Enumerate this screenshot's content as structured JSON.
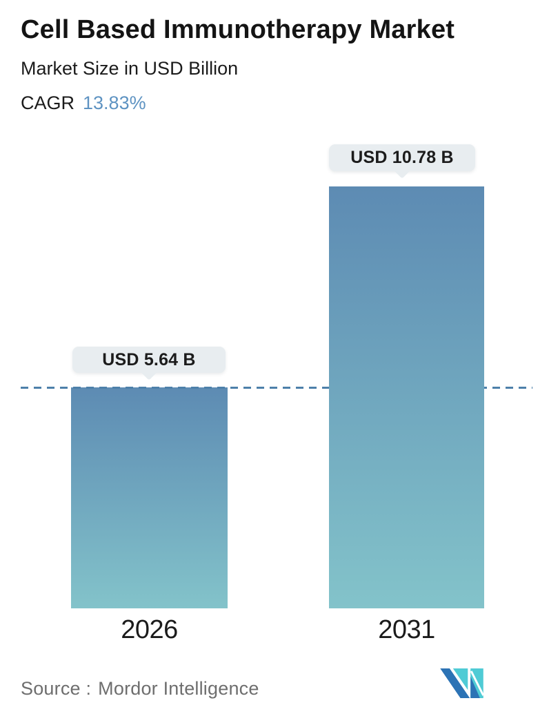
{
  "header": {
    "title": "Cell Based Immunotherapy Market",
    "subtitle": "Market Size in USD Billion",
    "cagr_label": "CAGR",
    "cagr_value": "13.83%"
  },
  "chart_data": {
    "type": "bar",
    "title": "Cell Based Immunotherapy Market",
    "ylabel": "Market Size in USD Billion",
    "unit": "USD Billion",
    "cagr_percent": 13.83,
    "categories": [
      "2026",
      "2031"
    ],
    "values": [
      5.64,
      10.78
    ],
    "value_labels": [
      "USD 5.64 B",
      "USD 10.78 B"
    ],
    "ylim": [
      0,
      12
    ],
    "grid": false,
    "legend": false,
    "bar_gradient_top": "#5d8bb3",
    "bar_gradient_bottom": "#83c3ca",
    "reference_line": {
      "style": "dashed",
      "color": "#4d80aa",
      "at_value": 5.64,
      "note": "dashed guideline at 2026 bar top spanning full plot width"
    }
  },
  "footer": {
    "source_label": "Source :",
    "source_value": "Mordor Intelligence",
    "logo_name": "mordor-intelligence-logo",
    "logo_teal": "#4fcbd5",
    "logo_blue": "#2c73b5"
  },
  "colors": {
    "accent_blue": "#5e93c2",
    "badge_bg": "#e8edf0",
    "text_dark": "#141414",
    "muted_text": "#6e6e6e",
    "background": "#ffffff"
  }
}
